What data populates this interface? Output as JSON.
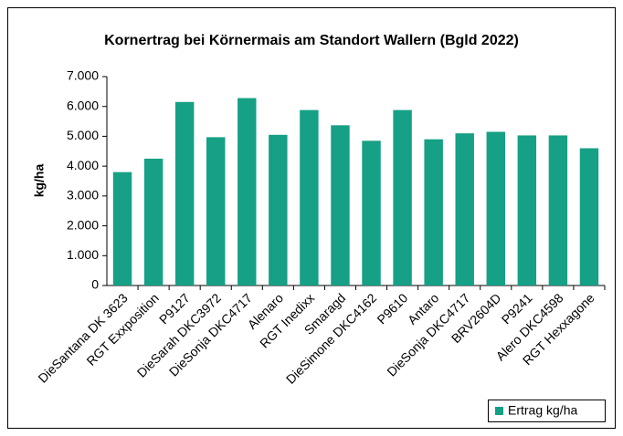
{
  "chart_data": {
    "type": "bar",
    "title": "Kornertrag bei Körnermais am Standort Wallern (Bgld 2022)",
    "y_label": "kg/ha",
    "categories": [
      "DieSantana DK 3623",
      "RGT Exxposition",
      "P9127",
      "DieSarah DKC3972",
      "DieSonja DKC4717",
      "Alenaro",
      "RGT Inedixx",
      "Smaragd",
      "DieSimone DKC4162",
      "P9610",
      "Antaro",
      "DieSonja DKC4717",
      "BRV2604D",
      "P9241",
      "Alero DKC4598",
      "RGT Hexxagone"
    ],
    "series": [
      {
        "name": "Ertrag kg/ha",
        "color": "#16a085",
        "values": [
          3800,
          4250,
          6150,
          4970,
          6280,
          5050,
          5880,
          5370,
          4850,
          5880,
          4900,
          5100,
          5150,
          5030,
          5030,
          4600
        ]
      }
    ],
    "ylim": [
      0,
      7000
    ],
    "yticks": [
      0,
      {
        "value": 1000,
        "label": "1.000"
      },
      {
        "value": 2000,
        "label": "2.000"
      },
      {
        "value": 3000,
        "label": "3.000"
      },
      {
        "value": 4000,
        "label": "4.000"
      },
      {
        "value": 5000,
        "label": "5.000"
      },
      {
        "value": 6000,
        "label": "6.000"
      },
      {
        "value": 7000,
        "label": "7.000"
      }
    ],
    "legend": "bottom-right",
    "grid": false
  }
}
